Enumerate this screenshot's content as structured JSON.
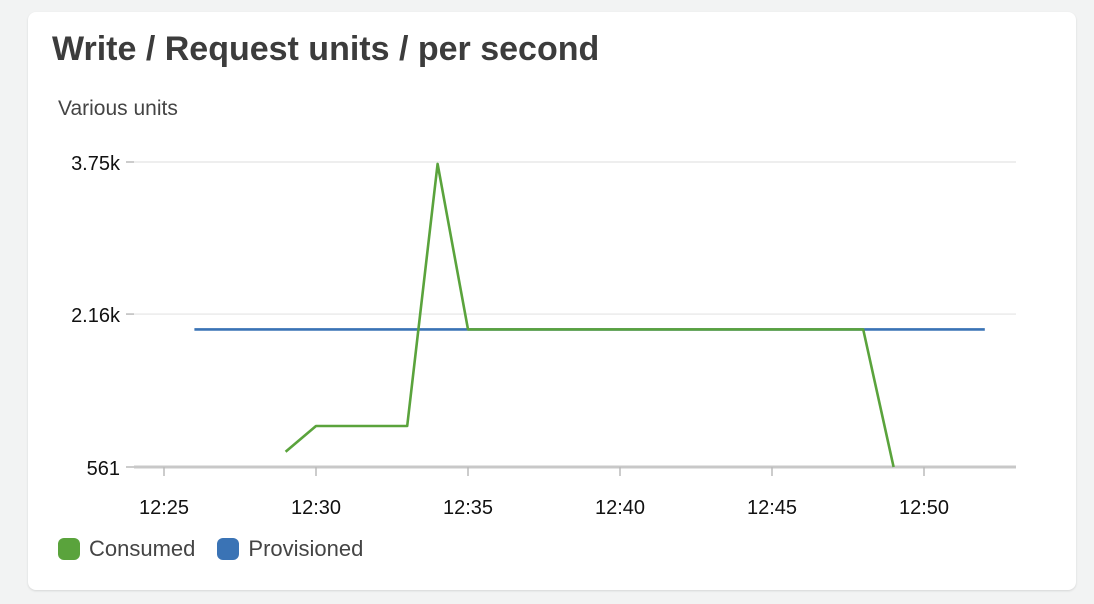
{
  "widget": {
    "title": "Write / Request units / per second",
    "units_label": "Various units"
  },
  "chart_data": {
    "type": "line",
    "title": "Write / Request units / per second",
    "ylabel": "Various units",
    "xlabel": "",
    "ylim": [
      561,
      3750
    ],
    "yticks": [
      {
        "value": 561,
        "label": "561"
      },
      {
        "value": 2160,
        "label": "2.16k"
      },
      {
        "value": 3750,
        "label": "3.75k"
      }
    ],
    "xlim": [
      "12:25",
      "12:54"
    ],
    "xticks": [
      "12:25",
      "12:30",
      "12:35",
      "12:40",
      "12:45",
      "12:50"
    ],
    "grid": true,
    "legend_position": "bottom-left",
    "series": [
      {
        "name": "Consumed",
        "color": "#5aa33c",
        "x": [
          "12:29",
          "12:30",
          "12:33",
          "12:34",
          "12:35",
          "12:48",
          "12:49"
        ],
        "y": [
          720,
          990,
          990,
          3730,
          2000,
          2000,
          561
        ]
      },
      {
        "name": "Provisioned",
        "color": "#3a73b5",
        "x": [
          "12:26",
          "12:52"
        ],
        "y": [
          2000,
          2000
        ]
      }
    ]
  }
}
